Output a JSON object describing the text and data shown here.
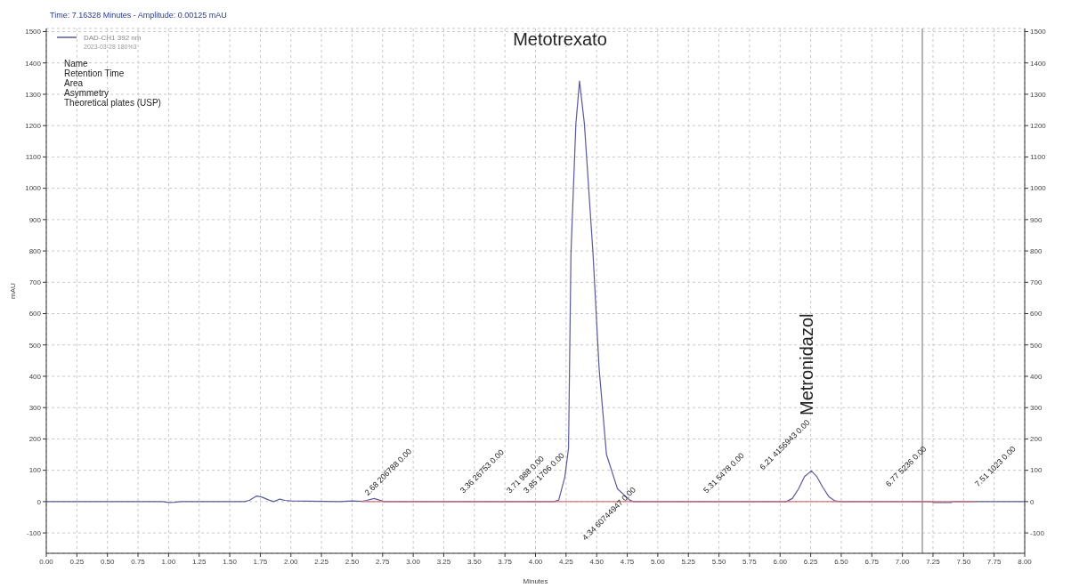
{
  "chart_data": {
    "type": "line",
    "xlabel": "Minutes",
    "ylabel": "mAU",
    "x": [
      0,
      0.95,
      1.0,
      1.05,
      1.1,
      1.62,
      1.66,
      1.72,
      1.76,
      1.82,
      1.86,
      1.91,
      1.95,
      2.0,
      2.4,
      2.5,
      2.58,
      2.62,
      2.68,
      2.74,
      2.76,
      4.15,
      4.19,
      4.24,
      4.27,
      4.29,
      4.33,
      4.36,
      4.4,
      4.47,
      4.52,
      4.58,
      4.67,
      4.77,
      4.8,
      6.05,
      6.1,
      6.15,
      6.2,
      6.255,
      6.3,
      6.35,
      6.4,
      6.45,
      6.5,
      7.24,
      7.25,
      7.4,
      7.41,
      8
    ],
    "series": [
      {
        "name": "DAD-CH1 392 nm",
        "color": "#5a5a9a",
        "values": [
          0,
          0,
          -3,
          -2,
          0,
          0,
          4,
          18,
          15,
          5,
          0,
          8,
          4,
          2,
          0,
          2,
          1,
          4,
          10,
          3,
          0,
          0,
          5,
          79,
          170,
          793,
          1205,
          1342,
          1205,
          793,
          426,
          151,
          41,
          5,
          0,
          0,
          10,
          40,
          80,
          98,
          80,
          45,
          15,
          2,
          0,
          0,
          -3,
          -3,
          0,
          0
        ]
      },
      {
        "color": "#d9707a",
        "x": [
          2.58,
          7.6
        ],
        "values": [
          0,
          0
        ]
      }
    ],
    "xlim": [
      0,
      8
    ],
    "xticks": [
      {
        "value": 0,
        "label": "0.00"
      },
      {
        "value": 0.25,
        "label": "0.25"
      },
      {
        "value": 0.5,
        "label": "0.50"
      },
      {
        "value": 0.75,
        "label": "0.75"
      },
      {
        "value": 1,
        "label": "1.00"
      },
      {
        "value": 1.25,
        "label": "1.25"
      },
      {
        "value": 1.5,
        "label": "1.50"
      },
      {
        "value": 1.75,
        "label": "1.75"
      },
      {
        "value": 2,
        "label": "2.00"
      },
      {
        "value": 2.25,
        "label": "2.25"
      },
      {
        "value": 2.5,
        "label": "2.50"
      },
      {
        "value": 2.75,
        "label": "2.75"
      },
      {
        "value": 3,
        "label": "3.00"
      },
      {
        "value": 3.25,
        "label": "3.25"
      },
      {
        "value": 3.5,
        "label": "3.50"
      },
      {
        "value": 3.75,
        "label": "3.75"
      },
      {
        "value": 4,
        "label": "4.00"
      },
      {
        "value": 4.25,
        "label": "4.25"
      },
      {
        "value": 4.5,
        "label": "4.50"
      },
      {
        "value": 4.75,
        "label": "4.75"
      },
      {
        "value": 5,
        "label": "5.00"
      },
      {
        "value": 5.25,
        "label": "5.25"
      },
      {
        "value": 5.5,
        "label": "5.50"
      },
      {
        "value": 5.75,
        "label": "5.75"
      },
      {
        "value": 6,
        "label": "6.00"
      },
      {
        "value": 6.25,
        "label": "6.25"
      },
      {
        "value": 6.5,
        "label": "6.50"
      },
      {
        "value": 6.75,
        "label": "6.75"
      },
      {
        "value": 7,
        "label": "7.00"
      },
      {
        "value": 7.25,
        "label": "7.25"
      },
      {
        "value": 7.5,
        "label": "7.50"
      },
      {
        "value": 7.75,
        "label": "7.75"
      },
      {
        "value": 8,
        "label": "8.00"
      }
    ],
    "ylim": [
      -165,
      1510
    ],
    "yticks": [
      -100,
      0,
      100,
      200,
      300,
      400,
      500,
      600,
      700,
      800,
      900,
      1000,
      1100,
      1200,
      1300,
      1400,
      1500
    ],
    "y2lim": [
      -165,
      1510
    ],
    "y2ticks": [
      -100,
      0,
      100,
      200,
      300,
      400,
      500,
      600,
      700,
      800,
      900,
      1000,
      1100,
      1200,
      1300,
      1400,
      1500
    ],
    "grid": true,
    "legend": "top left",
    "line_style": "solid",
    "ref_lines": [
      {
        "axis": "x",
        "value": 7.16328,
        "color": "#b4b4b4"
      }
    ],
    "annotations": [
      "Time:  7.16328 Minutes - Amplitude:  0.00125 mAU",
      "2023-03-28 180%3",
      "Name",
      "Retention Time",
      "Area",
      "Asymmetry",
      "Theoretical plates (USP)",
      "Metotrexato",
      "Metronidazol",
      "2.68  206788  0.00",
      "3.36  26753  0.00",
      "3.71  988  0.00",
      "3.85  1706  0.00",
      "4.34  60744947  0.00",
      "5.31  5478  0.00",
      "6.21  4156943  0.00",
      "6.77  5236  0.00",
      "7.51  1023  0.00"
    ]
  }
}
